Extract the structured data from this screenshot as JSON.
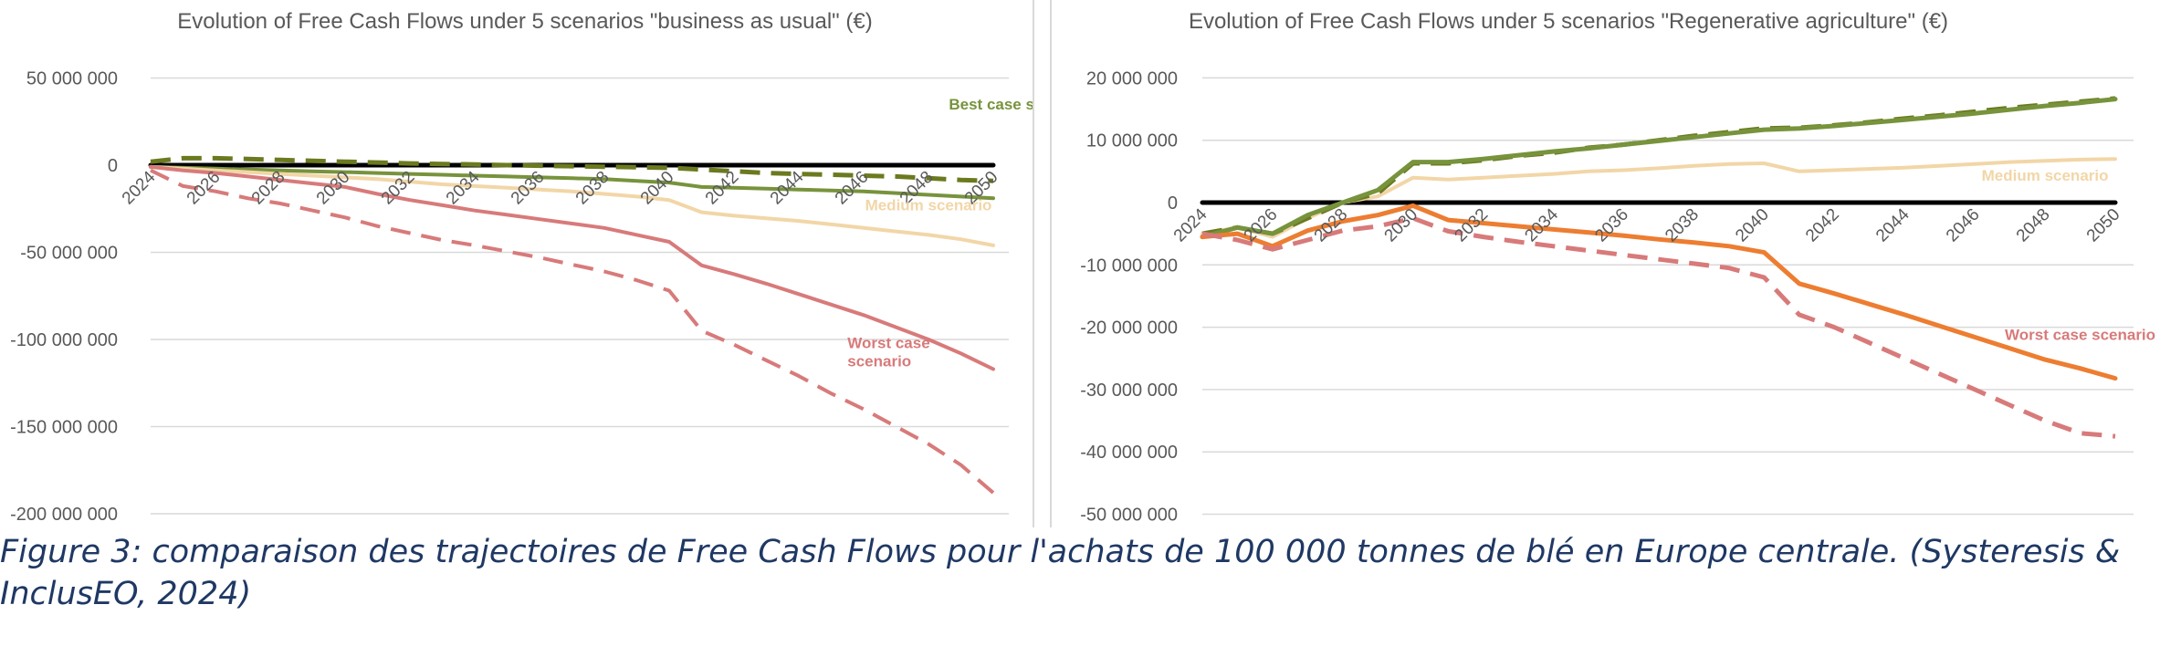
{
  "chart_data": [
    {
      "type": "line",
      "title": "Evolution of Free Cash Flows under 5 scenarios \"business as usual\" (€)",
      "xlabel": "",
      "ylabel": "",
      "x": [
        2024,
        2025,
        2026,
        2027,
        2028,
        2029,
        2030,
        2031,
        2032,
        2033,
        2034,
        2035,
        2036,
        2037,
        2038,
        2039,
        2040,
        2041,
        2042,
        2043,
        2044,
        2045,
        2046,
        2047,
        2048,
        2049,
        2050
      ],
      "x_tick_labels": [
        "2024",
        "2026",
        "2028",
        "2030",
        "2032",
        "2034",
        "2036",
        "2038",
        "2040",
        "2042",
        "2044",
        "2046",
        "2048",
        "2050"
      ],
      "ylim": [
        -200000000,
        50000000
      ],
      "y_ticks": [
        50000000,
        0,
        -50000000,
        -100000000,
        -150000000,
        -200000000
      ],
      "y_tick_labels": [
        "50 000 000",
        "0",
        "-50 000 000",
        "-100 000 000",
        "-150 000 000",
        "-200 000 000"
      ],
      "grid": true,
      "series": [
        {
          "key": "zero",
          "color": "#000000",
          "dash": false,
          "width": 5,
          "values": [
            0,
            0,
            0,
            0,
            0,
            0,
            0,
            0,
            0,
            0,
            0,
            0,
            0,
            0,
            0,
            0,
            0,
            0,
            0,
            0,
            0,
            0,
            0,
            0,
            0,
            0,
            0
          ]
        },
        {
          "key": "best-dashed",
          "color": "#6b7a1f",
          "dash": true,
          "width": 5,
          "values": [
            2000000,
            4000000,
            4000000,
            3500000,
            3000000,
            2500000,
            2000000,
            1500000,
            1000000,
            700000,
            400000,
            0,
            -300000,
            -600000,
            -900000,
            -1200000,
            -1500000,
            -2500000,
            -3500000,
            -4500000,
            -5000000,
            -5500000,
            -6000000,
            -6500000,
            -7500000,
            -8500000,
            -9000000
          ]
        },
        {
          "key": "best-solid",
          "color": "#77933c",
          "dash": false,
          "width": 4,
          "values": [
            -1000000,
            -1500000,
            -2000000,
            -2500000,
            -3000000,
            -3500000,
            -4000000,
            -4500000,
            -5000000,
            -5500000,
            -6000000,
            -6500000,
            -7000000,
            -7500000,
            -8000000,
            -9000000,
            -10000000,
            -12500000,
            -13000000,
            -13500000,
            -14000000,
            -14500000,
            -15000000,
            -16000000,
            -17000000,
            -18000000,
            -19000000
          ]
        },
        {
          "key": "medium",
          "color": "#f2d6a7",
          "dash": false,
          "width": 4,
          "values": [
            -1000000,
            -2000000,
            -3000000,
            -4000000,
            -5000000,
            -6000000,
            -7000000,
            -8000000,
            -9500000,
            -11000000,
            -12000000,
            -13000000,
            -14000000,
            -15000000,
            -16500000,
            -18000000,
            -20000000,
            -27000000,
            -29000000,
            -30500000,
            -32000000,
            -34000000,
            -36000000,
            -38000000,
            -40000000,
            -42500000,
            -46000000
          ]
        },
        {
          "key": "worst-solid",
          "color": "#d87a7a",
          "dash": false,
          "width": 4,
          "values": [
            -1000000,
            -3000000,
            -4500000,
            -6500000,
            -8500000,
            -10500000,
            -12500000,
            -16500000,
            -20000000,
            -23000000,
            -26000000,
            -28500000,
            -31000000,
            -33500000,
            -36000000,
            -40000000,
            -44000000,
            -57500000,
            -62500000,
            -68000000,
            -74000000,
            -80000000,
            -86000000,
            -93000000,
            -100000000,
            -108000000,
            -117000000
          ]
        },
        {
          "key": "worst-dashed",
          "color": "#d87a7a",
          "dash": true,
          "width": 4,
          "values": [
            -3000000,
            -12000000,
            -15000000,
            -19000000,
            -22000000,
            -26000000,
            -30000000,
            -35000000,
            -39000000,
            -43000000,
            -46000000,
            -49500000,
            -53000000,
            -57000000,
            -61000000,
            -66000000,
            -72000000,
            -95000000,
            -103000000,
            -112000000,
            -121000000,
            -131000000,
            -140000000,
            -150000000,
            -160000000,
            -172000000,
            -188000000
          ]
        }
      ],
      "annotations": [
        {
          "key": "best",
          "lines": [
            "Best case scenario"
          ],
          "color": "#77933c",
          "x": 2050.8,
          "y": 32000000,
          "anchor": "middle"
        },
        {
          "key": "medium",
          "lines": [
            "Medium scenario"
          ],
          "color": "#f2d6a7",
          "x": 2048,
          "y": -26000000,
          "anchor": "middle"
        },
        {
          "key": "worst",
          "lines": [
            "Worst case",
            "scenario"
          ],
          "color": "#d87a7a",
          "x": 2045.5,
          "y": -105000000,
          "anchor": "start"
        }
      ]
    },
    {
      "type": "line",
      "title": "Evolution of Free Cash Flows under 5 scenarios \"Regenerative agriculture\" (€)",
      "xlabel": "",
      "ylabel": "",
      "x": [
        2024,
        2025,
        2026,
        2027,
        2028,
        2029,
        2030,
        2031,
        2032,
        2033,
        2034,
        2035,
        2036,
        2037,
        2038,
        2039,
        2040,
        2041,
        2042,
        2043,
        2044,
        2045,
        2046,
        2047,
        2048,
        2049,
        2050
      ],
      "x_tick_labels": [
        "2024",
        "2026",
        "2028",
        "2030",
        "2032",
        "2034",
        "2036",
        "2038",
        "2040",
        "2042",
        "2044",
        "2046",
        "2048",
        "2050"
      ],
      "ylim": [
        -50000000,
        20000000
      ],
      "y_ticks": [
        20000000,
        10000000,
        0,
        -10000000,
        -20000000,
        -30000000,
        -40000000,
        -50000000
      ],
      "y_tick_labels": [
        "20 000 000",
        "10 000 000",
        "0",
        "-10 000 000",
        "-20 000 000",
        "-30 000 000",
        "-40 000 000",
        "-50 000 000"
      ],
      "grid": true,
      "series": [
        {
          "key": "zero",
          "color": "#000000",
          "dash": false,
          "width": 5,
          "values": [
            0,
            0,
            0,
            0,
            0,
            0,
            0,
            0,
            0,
            0,
            0,
            0,
            0,
            0,
            0,
            0,
            0,
            0,
            0,
            0,
            0,
            0,
            0,
            0,
            0,
            0,
            0
          ]
        },
        {
          "key": "medium",
          "color": "#f2d6a7",
          "dash": false,
          "width": 4,
          "values": [
            -5000000,
            -4000000,
            -5500000,
            -2500000,
            0,
            1000000,
            4000000,
            3700000,
            4000000,
            4300000,
            4600000,
            5000000,
            5200000,
            5500000,
            5900000,
            6200000,
            6300000,
            5000000,
            5200000,
            5400000,
            5600000,
            5900000,
            6200000,
            6500000,
            6700000,
            6900000,
            7000000
          ]
        },
        {
          "key": "best-dashed",
          "color": "#6b7a1f",
          "dash": true,
          "width": 5,
          "values": [
            -5000000,
            -4000000,
            -5000000,
            -2500000,
            0,
            1500000,
            6300000,
            6300000,
            6800000,
            7500000,
            8000000,
            8800000,
            9300000,
            10000000,
            10700000,
            11300000,
            11900000,
            12000000,
            12400000,
            12900000,
            13500000,
            14000000,
            14600000,
            15200000,
            15700000,
            16200000,
            16700000
          ]
        },
        {
          "key": "best-solid",
          "color": "#77933c",
          "dash": false,
          "width": 5,
          "values": [
            -5500000,
            -4000000,
            -5000000,
            -2000000,
            0,
            2000000,
            6500000,
            6500000,
            7000000,
            7600000,
            8200000,
            8700000,
            9300000,
            9900000,
            10500000,
            11100000,
            11700000,
            11900000,
            12300000,
            12800000,
            13300000,
            13800000,
            14300000,
            14900000,
            15500000,
            16000000,
            16600000
          ]
        },
        {
          "key": "worst-solid",
          "color": "#ed7d31",
          "dash": false,
          "width": 5,
          "values": [
            -5500000,
            -5000000,
            -7000000,
            -4500000,
            -3000000,
            -2000000,
            -500000,
            -2800000,
            -3300000,
            -3800000,
            -4300000,
            -4800000,
            -5300000,
            -5900000,
            -6400000,
            -7000000,
            -8000000,
            -13000000,
            -14600000,
            -16300000,
            -18000000,
            -19800000,
            -21600000,
            -23400000,
            -25200000,
            -26600000,
            -28200000
          ]
        },
        {
          "key": "worst-dashed",
          "color": "#d87a7a",
          "dash": true,
          "width": 5,
          "values": [
            -5000000,
            -6000000,
            -7500000,
            -6000000,
            -4500000,
            -3800000,
            -2500000,
            -4600000,
            -5500000,
            -6300000,
            -7000000,
            -7700000,
            -8400000,
            -9100000,
            -9800000,
            -10500000,
            -12000000,
            -18000000,
            -20000000,
            -22500000,
            -25000000,
            -27500000,
            -30000000,
            -32500000,
            -35000000,
            -37000000,
            -37500000
          ]
        }
      ],
      "annotations": [
        {
          "key": "medium",
          "lines": [
            "Medium scenario"
          ],
          "color": "#f2d6a7",
          "x": 2048,
          "y": 3500000,
          "anchor": "middle"
        },
        {
          "key": "worst",
          "lines": [
            "Worst case scenario"
          ],
          "color": "#d87a7a",
          "x": 2049,
          "y": -22000000,
          "anchor": "middle"
        }
      ]
    }
  ],
  "caption": "Figure 3: comparaison des trajectoires de Free Cash Flows pour l'achats de 100 000 tonnes de blé en Europe centrale. (Systeresis & InclusEO, 2024)"
}
